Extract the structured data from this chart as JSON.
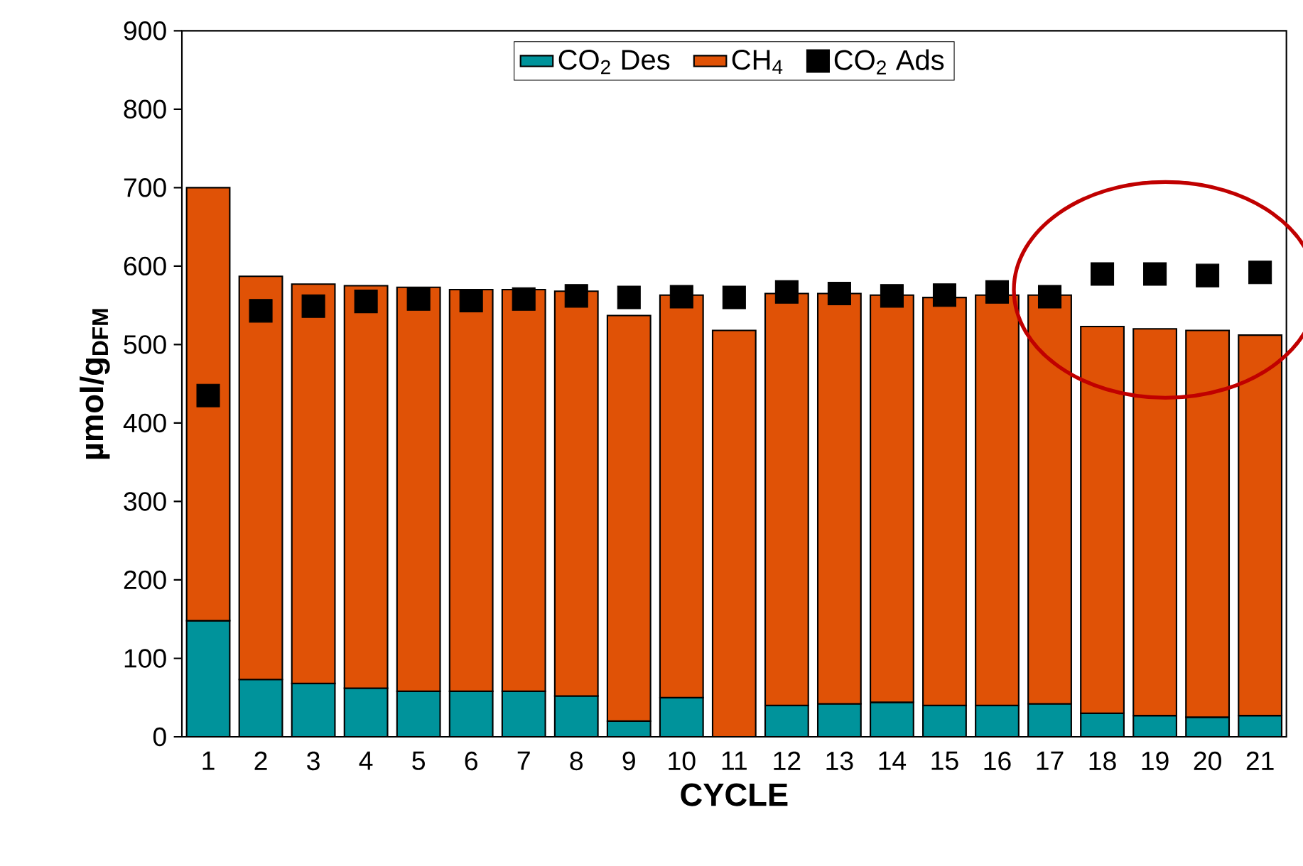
{
  "chart_data": {
    "type": "bar",
    "stacked": true,
    "xlabel": "CYCLE",
    "ylabel": "µmol/g$_{DFM}$",
    "categories": [
      "1",
      "2",
      "3",
      "4",
      "5",
      "6",
      "7",
      "8",
      "9",
      "10",
      "11",
      "12",
      "13",
      "14",
      "15",
      "16",
      "17",
      "18",
      "19",
      "20",
      "21"
    ],
    "ylim": [
      0,
      900
    ],
    "yticks": [
      0,
      100,
      200,
      300,
      400,
      500,
      600,
      700,
      800,
      900
    ],
    "grid": false,
    "legend": "top",
    "marker": "square",
    "series": [
      {
        "name": "CO$_{2}$ Des",
        "color": "#00939b",
        "values": [
          148,
          73,
          68,
          62,
          58,
          58,
          58,
          52,
          20,
          50,
          0,
          40,
          42,
          44,
          40,
          40,
          42,
          30,
          27,
          25,
          27
        ]
      },
      {
        "name": "CH$_{4}$",
        "color": "#e05206",
        "values": [
          552,
          514,
          509,
          513,
          515,
          512,
          512,
          516,
          517,
          513,
          518,
          525,
          523,
          519,
          520,
          523,
          521,
          493,
          493,
          493,
          485
        ]
      },
      {
        "name": "CO$_{2}$ Ads",
        "type": "scatter",
        "color": "#000000",
        "values": [
          435,
          543,
          549,
          555,
          558,
          556,
          558,
          562,
          560,
          561,
          560,
          567,
          565,
          562,
          563,
          567,
          561,
          590,
          590,
          588,
          592
        ]
      }
    ]
  }
}
